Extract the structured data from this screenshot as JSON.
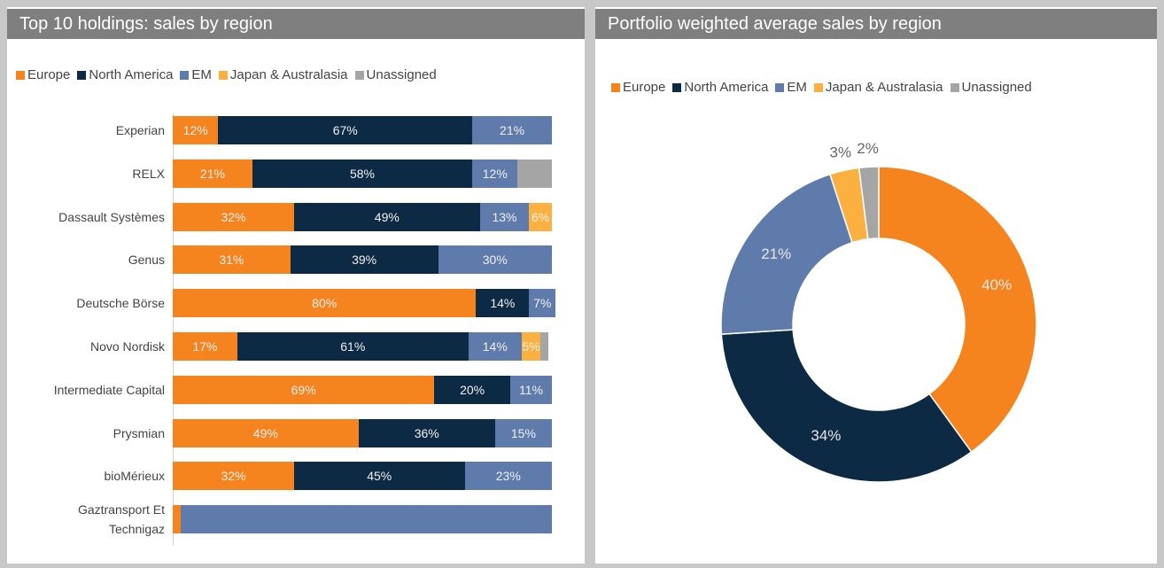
{
  "chart_data": [
    {
      "type": "stacked-bar-horizontal",
      "title": "Top 10 holdings: sales by region",
      "categories": [
        "Experian",
        "RELX",
        "Dassault Systèmes",
        "Genus",
        "Deutsche Börse",
        "Novo Nordisk",
        "Intermediate Capital",
        "Prysmian",
        "bioMérieux",
        "Gaztransport Et Technigaz"
      ],
      "xlim": [
        0,
        100
      ],
      "series": [
        {
          "name": "Europe",
          "color": "#f5841f",
          "values": [
            12,
            21,
            32,
            31,
            80,
            17,
            69,
            49,
            32,
            2
          ],
          "value_labels": [
            "12%",
            "21%",
            "32%",
            "31%",
            "80%",
            "17%",
            "69%",
            "49%",
            "32%",
            null
          ]
        },
        {
          "name": "North America",
          "color": "#0d2a45",
          "values": [
            67,
            58,
            49,
            39,
            14,
            61,
            20,
            36,
            45,
            0
          ],
          "value_labels": [
            "67%",
            "58%",
            "49%",
            "39%",
            "14%",
            "61%",
            "20%",
            "36%",
            "45%",
            null
          ]
        },
        {
          "name": "EM",
          "color": "#5f7bab",
          "values": [
            21,
            12,
            13,
            30,
            7,
            14,
            11,
            15,
            23,
            98
          ],
          "value_labels": [
            "21%",
            "12%",
            "13%",
            "30%",
            "7%",
            "14%",
            "11%",
            "15%",
            "23%",
            null
          ]
        },
        {
          "name": "Japan & Australasia",
          "color": "#fbb040",
          "values": [
            0,
            0,
            6,
            0,
            0,
            5,
            0,
            0,
            0,
            0
          ],
          "value_labels": [
            null,
            null,
            "6%",
            null,
            null,
            "5%",
            null,
            null,
            null,
            null
          ]
        },
        {
          "name": "Unassigned",
          "color": "#a5a5a5",
          "values": [
            0,
            9,
            0,
            0,
            0,
            2,
            0,
            0,
            0,
            0
          ],
          "value_labels": [
            null,
            null,
            null,
            null,
            null,
            null,
            null,
            null,
            null,
            null
          ]
        }
      ]
    },
    {
      "type": "donut",
      "title": "Portfolio weighted average sales by region",
      "categories": [
        "Europe",
        "North America",
        "EM",
        "Japan & Australasia",
        "Unassigned"
      ],
      "values": [
        40,
        34,
        21,
        3,
        2
      ],
      "value_labels": [
        "40%",
        "34%",
        "21%",
        "3%",
        "2%"
      ],
      "colors": [
        "#f5841f",
        "#0d2a45",
        "#5f7bab",
        "#fbb040",
        "#a5a5a5"
      ]
    }
  ]
}
